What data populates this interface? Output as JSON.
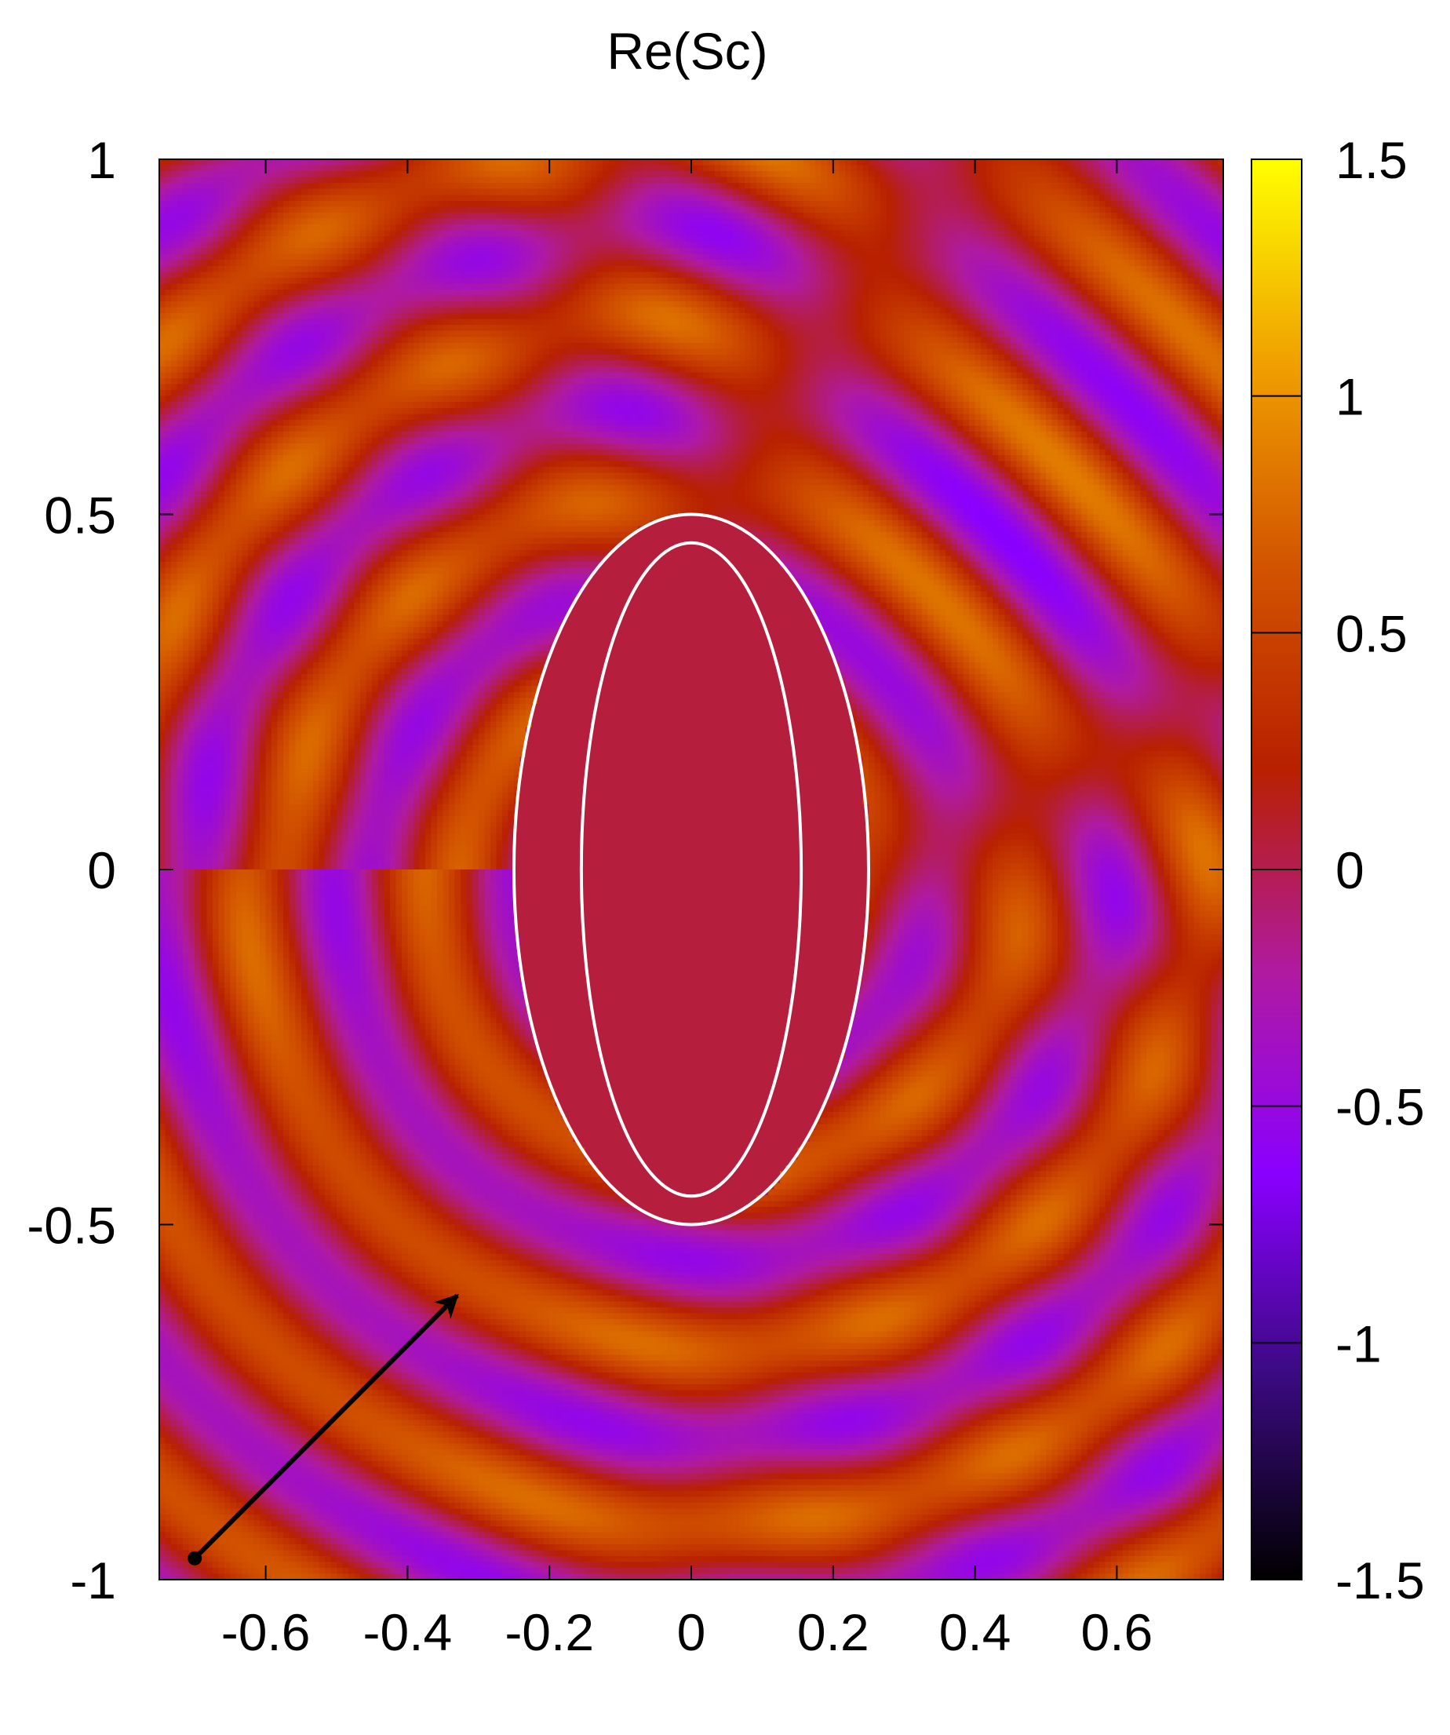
{
  "chart_data": {
    "type": "heatmap",
    "title": "Re(Sc)",
    "xlabel": "",
    "ylabel": "",
    "xlim": [
      -0.75,
      0.75
    ],
    "ylim": [
      -1,
      1
    ],
    "x_ticks": [
      -0.6,
      -0.4,
      -0.2,
      0,
      0.2,
      0.4,
      0.6
    ],
    "x_tick_labels": [
      "-0.6",
      "-0.4",
      "-0.2",
      "0",
      "0.2",
      "0.4",
      "0.6"
    ],
    "y_ticks": [
      1,
      0.5,
      0,
      -0.5,
      -1
    ],
    "y_tick_labels": [
      "1",
      "0.5",
      "0",
      "-0.5",
      "-1"
    ],
    "colorbar": {
      "range": [
        -1.5,
        1.5
      ],
      "ticks": [
        1.5,
        1,
        0.5,
        0,
        -0.5,
        -1,
        -1.5
      ],
      "tick_labels": [
        "1.5",
        "1",
        "0.5",
        "0",
        "-0.5",
        "-1",
        "-1.5"
      ],
      "palette": [
        "#000000",
        "#3a0a80",
        "#8a00ff",
        "#b01aa0",
        "#b82000",
        "#d25400",
        "#f0a000",
        "#ffff00"
      ]
    },
    "scatterer": {
      "center": [
        0,
        0
      ],
      "outer_semi_axes": [
        0.25,
        0.5
      ],
      "inner_semi_axes": [
        0.155,
        0.46
      ],
      "interior_value": 0.05,
      "contour_color": "#ffffff"
    },
    "incident_arrow": {
      "from": [
        -0.7,
        -0.97
      ],
      "to": [
        -0.33,
        -0.6
      ],
      "color": "#000000"
    },
    "grid": false
  }
}
